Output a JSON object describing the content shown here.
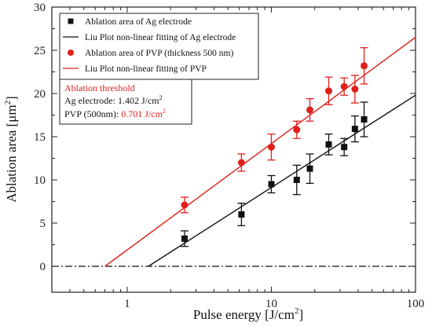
{
  "chart_data": {
    "type": "scatter",
    "xscale": "log",
    "xlim": [
      0.3,
      100
    ],
    "ylim": [
      -3,
      30
    ],
    "xlabel_main": "Pulse energy [J/cm",
    "xlabel_sup": "2",
    "xlabel_tail": "]",
    "ylabel_main": "Ablation area [μm",
    "ylabel_sup": "2",
    "ylabel_tail": "]",
    "xticks": [
      1,
      10,
      100
    ],
    "xtick_labels": [
      "1",
      "10",
      "100"
    ],
    "yticks": [
      0,
      5,
      10,
      15,
      20,
      25,
      30
    ],
    "ytick_labels": [
      "0",
      "5",
      "10",
      "15",
      "20",
      "25",
      "30"
    ],
    "series": [
      {
        "name": "Ablation area of Ag electrode",
        "marker": "square",
        "color": "#111111",
        "x": [
          2.5,
          6.2,
          10,
          15,
          18.5,
          25,
          32,
          38,
          44
        ],
        "y": [
          3.2,
          6.0,
          9.5,
          10.0,
          11.3,
          14.1,
          13.8,
          15.9,
          17.0
        ],
        "err": [
          0.9,
          1.3,
          1.0,
          1.7,
          1.7,
          1.2,
          1.0,
          1.5,
          2.0
        ]
      },
      {
        "name": "Ablation area of PVP (thickness 500 nm)",
        "marker": "circle",
        "color": "#e0201b",
        "x": [
          2.5,
          6.2,
          10,
          15,
          18.5,
          25,
          32,
          38,
          44
        ],
        "y": [
          7.1,
          12.0,
          13.8,
          15.8,
          18.1,
          20.3,
          20.8,
          20.5,
          23.2
        ],
        "err": [
          0.9,
          1.0,
          1.5,
          1.0,
          1.3,
          1.6,
          1.0,
          1.6,
          2.1
        ]
      }
    ],
    "fits": [
      {
        "name": "Liu Plot non-linear fitting of Ag electrode",
        "color": "#111111",
        "x": [
          1.402,
          100
        ],
        "y": [
          0,
          19.8
        ]
      },
      {
        "name": "Liu Plot non-linear fitting of PVP",
        "color": "#e0201b",
        "x": [
          0.701,
          100
        ],
        "y": [
          0,
          26.5
        ]
      }
    ],
    "zero_line": {
      "y": 0,
      "style": "dash-dot"
    },
    "legend_position": "top-left",
    "annotation": {
      "title": "Ablation threshold",
      "row1_label": "Ag electrode:  1.402 J/cm",
      "row1_sup": "2",
      "row2_label": "PVP (500nm): ",
      "row2_value": "0.701 J/cm",
      "row2_sup": "2"
    }
  },
  "colors": {
    "black_series": "#111111",
    "red_series": "#e0201b"
  }
}
